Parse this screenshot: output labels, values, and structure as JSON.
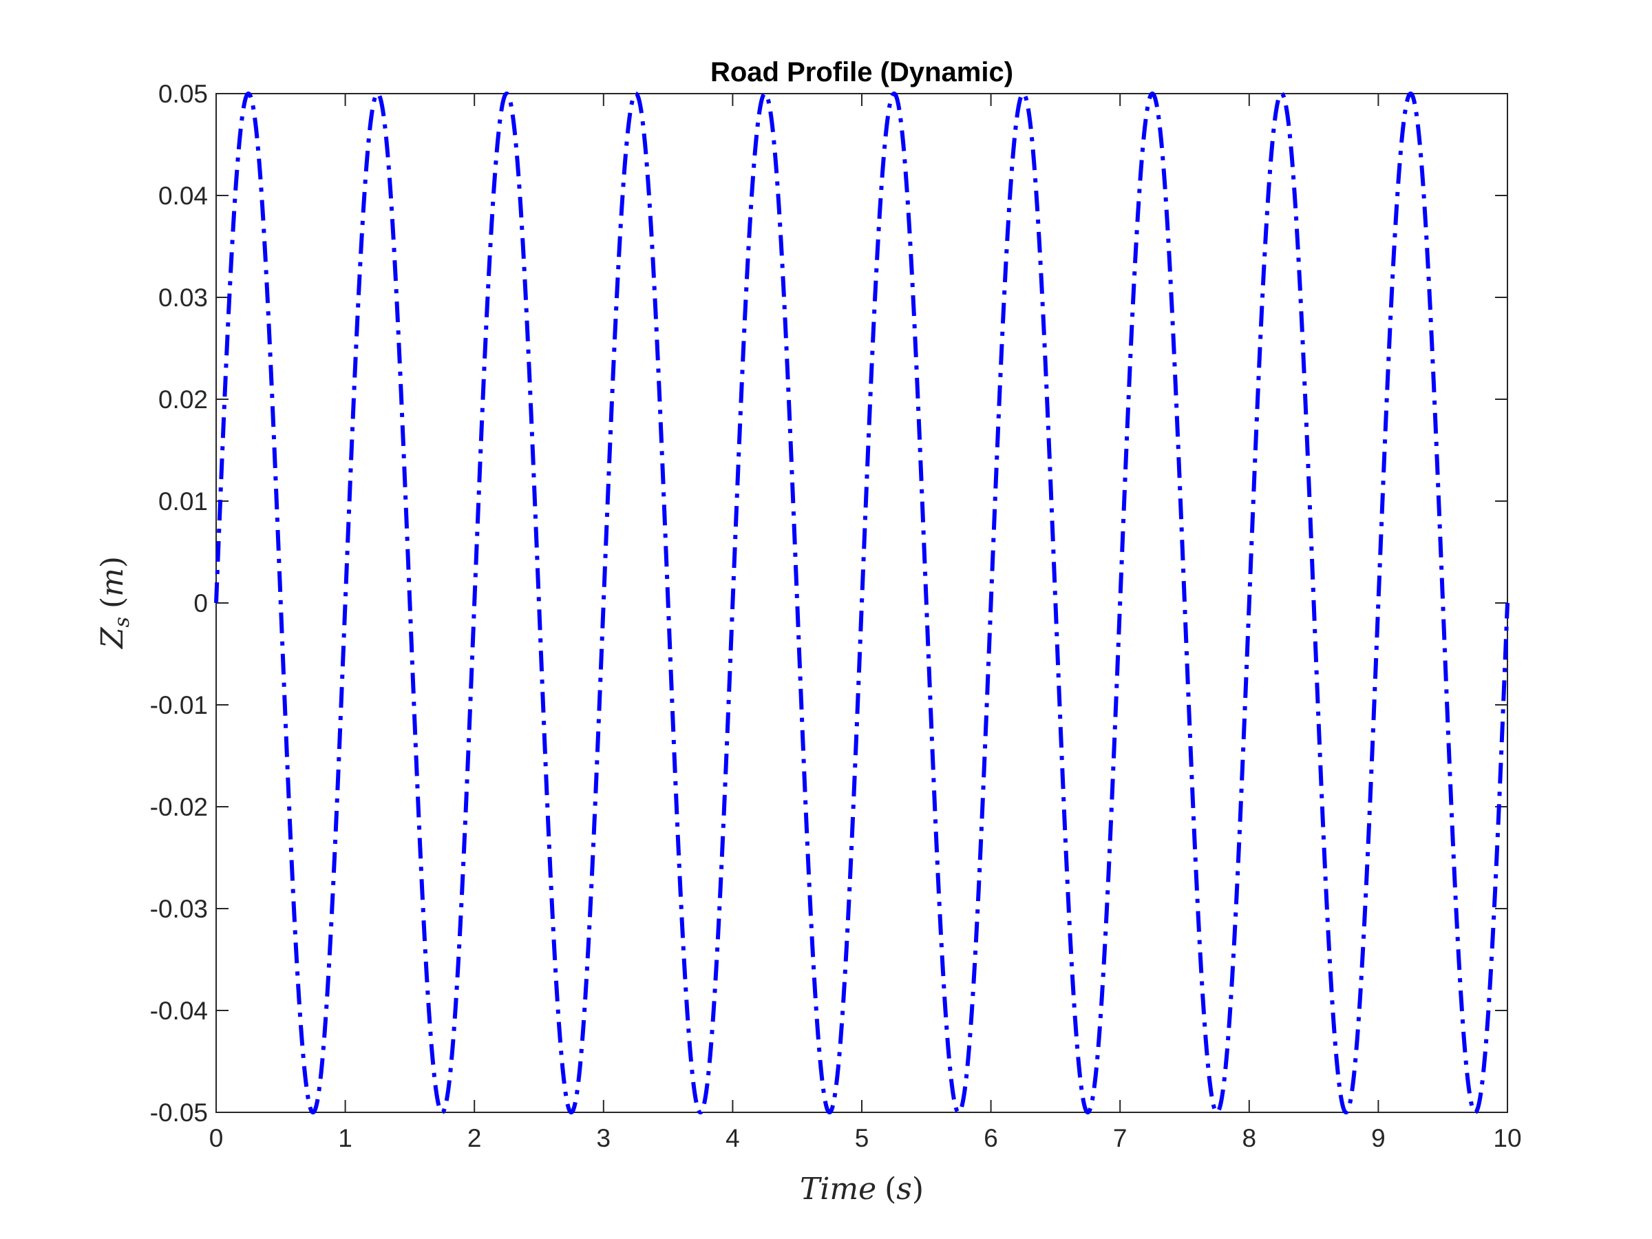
{
  "chart_data": {
    "type": "line",
    "title": "Road Profile (Dynamic)",
    "xlabel": "Time (s)",
    "ylabel": "Z_s (m)",
    "xlabel_parts": {
      "var": "Time",
      "open": "(",
      "unit": "s",
      "close": ")"
    },
    "ylabel_parts": {
      "var": "Z",
      "sub": "s",
      "open": "(",
      "unit": "m",
      "close": ")"
    },
    "xlim": [
      0,
      10
    ],
    "ylim": [
      -0.05,
      0.05
    ],
    "x_ticks": [
      "0",
      "1",
      "2",
      "3",
      "4",
      "5",
      "6",
      "7",
      "8",
      "9",
      "10"
    ],
    "y_ticks": [
      "0.05",
      "0.04",
      "0.03",
      "0.02",
      "0.01",
      "0",
      "-0.01",
      "-0.02",
      "-0.03",
      "-0.04",
      "-0.05"
    ],
    "grid": false,
    "series": [
      {
        "function": "0.05*sin(2*pi*t)",
        "amplitude": 0.05,
        "frequency_hz": 1,
        "x_start": 0,
        "x_end": 10,
        "color": "#0000ff",
        "line_style": "dash-dot"
      }
    ]
  }
}
